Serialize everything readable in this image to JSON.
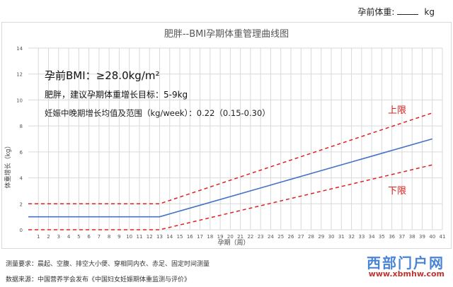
{
  "header": {
    "weight_label": "孕前体重:",
    "unit": "kg"
  },
  "chart_data": {
    "type": "line",
    "title": "肥胖--BMI孕期体重管理曲线图",
    "xlabel": "孕期（周）",
    "ylabel": "体重增长（kg）",
    "xlim": [
      0,
      41
    ],
    "ylim": [
      0,
      14
    ],
    "xticks": [
      1,
      2,
      3,
      4,
      5,
      6,
      7,
      8,
      9,
      10,
      11,
      12,
      13,
      14,
      15,
      16,
      17,
      18,
      19,
      20,
      21,
      22,
      23,
      24,
      25,
      26,
      27,
      28,
      29,
      30,
      31,
      32,
      33,
      34,
      35,
      36,
      37,
      38,
      39,
      40,
      41
    ],
    "yticks": [
      0,
      2,
      4,
      6,
      8,
      10,
      12,
      14
    ],
    "series": [
      {
        "name": "上限",
        "style": "dashed",
        "color": "#e02020",
        "x": [
          0,
          13,
          40
        ],
        "y": [
          2,
          2,
          9
        ]
      },
      {
        "name": "",
        "style": "solid",
        "color": "#4472c4",
        "x": [
          0,
          13,
          40
        ],
        "y": [
          1,
          1,
          7
        ]
      },
      {
        "name": "下限",
        "style": "dashed",
        "color": "#e02020",
        "x": [
          0,
          13,
          40
        ],
        "y": [
          0,
          0,
          5
        ]
      }
    ],
    "annotations": {
      "bmi_line": "孕前BMI：≥28.0kg/m²",
      "target_line": "肥胖，建议孕期体重增长目标：5-9kg",
      "rate_line": "妊娠中晚期增长均值及范围（kg/week）：0.22（0.15-0.30）"
    },
    "grid": true,
    "legend": "inline labels",
    "colors": {
      "bound": "#e02020",
      "median": "#4472c4",
      "grid": "#d9d9d9"
    }
  },
  "footer": {
    "measure_note": "测量要求：晨起、空腹、排空大小便、穿相同内衣、赤足、固定时间测量",
    "source_note": "数据来源：中国营养学会发布《中国妇女妊娠期体重监测与评价》"
  },
  "watermark": {
    "main": "西部门户网",
    "url": "www.xbmhw.com"
  }
}
